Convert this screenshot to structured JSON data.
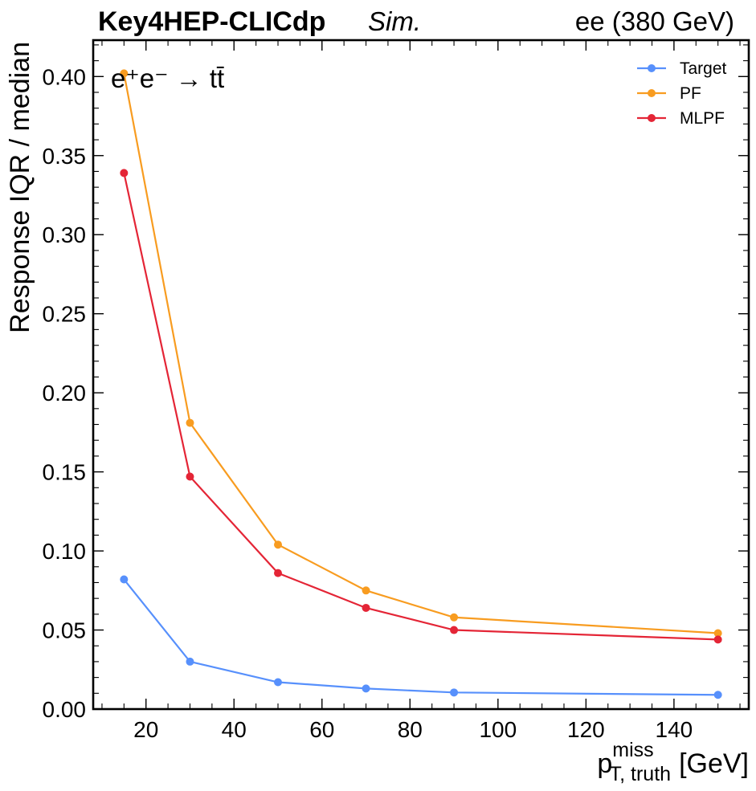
{
  "header": {
    "experiment": "Key4HEP-CLICdp",
    "status": "Sim.",
    "energy": "ee (380 GeV)"
  },
  "process_label": {
    "text": "e⁺e⁻ → tt̄"
  },
  "chart_data": {
    "type": "line",
    "xlabel": "p",
    "xlabel_sup": "miss",
    "xlabel_sub": "T, truth",
    "xlabel_unit": "[GeV]",
    "ylabel": "Response IQR / median",
    "xlim": [
      8,
      157
    ],
    "ylim": [
      0.0,
      0.423
    ],
    "xticks": [
      20,
      40,
      60,
      80,
      100,
      120,
      140
    ],
    "yticks": [
      0.0,
      0.05,
      0.1,
      0.15,
      0.2,
      0.25,
      0.3,
      0.35,
      0.4
    ],
    "ytick_labels": [
      "0.00",
      "0.05",
      "0.10",
      "0.15",
      "0.20",
      "0.25",
      "0.30",
      "0.35",
      "0.40"
    ],
    "x": [
      15,
      30,
      50,
      70,
      90,
      150
    ],
    "series": [
      {
        "name": "Target",
        "color": "#5790fc",
        "values": [
          0.082,
          0.03,
          0.017,
          0.013,
          0.0105,
          0.009
        ]
      },
      {
        "name": "PF",
        "color": "#f89c20",
        "values": [
          0.402,
          0.181,
          0.104,
          0.075,
          0.058,
          0.048
        ]
      },
      {
        "name": "MLPF",
        "color": "#e42536",
        "values": [
          0.339,
          0.147,
          0.086,
          0.064,
          0.05,
          0.044
        ]
      }
    ],
    "legend_position": "top-right",
    "grid": false
  }
}
